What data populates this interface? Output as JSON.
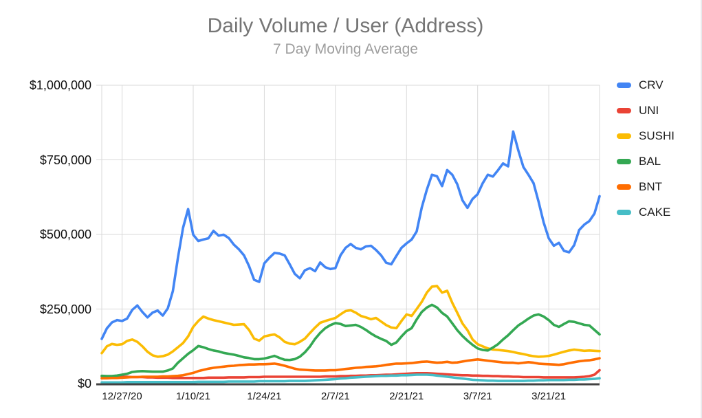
{
  "chart_data": {
    "type": "line",
    "title": "Daily Volume / User (Address)",
    "subtitle": "7 Day Moving Average",
    "x_range": {
      "start": "12/23/20",
      "end": "3/31/21",
      "points": 99
    },
    "ylim": [
      0,
      1000000
    ],
    "grid": true,
    "legend_position": "right",
    "style": {
      "grid_color": "#d9d9d9",
      "baseline_color": "#424242",
      "title_color": "#757575",
      "subtitle_color": "#9e9e9e",
      "axis_label_color": "#111111"
    },
    "y_ticks": [
      {
        "label": "$1,000,000",
        "value": 1000000
      },
      {
        "label": "$750,000",
        "value": 750000
      },
      {
        "label": "$500,000",
        "value": 500000
      },
      {
        "label": "$250,000",
        "value": 250000
      },
      {
        "label": "$0",
        "value": 0
      }
    ],
    "x_ticks": [
      {
        "label": "12/27/20",
        "index": 4
      },
      {
        "label": "1/10/21",
        "index": 18
      },
      {
        "label": "1/24/21",
        "index": 32
      },
      {
        "label": "2/7/21",
        "index": 46
      },
      {
        "label": "2/21/21",
        "index": 60
      },
      {
        "label": "3/7/21",
        "index": 74
      },
      {
        "label": "3/21/21",
        "index": 88
      }
    ],
    "series": [
      {
        "name": "CRV",
        "color": "#4285f4",
        "values": [
          150000,
          185000,
          205000,
          213000,
          210000,
          218000,
          247000,
          262000,
          240000,
          222000,
          238000,
          245000,
          228000,
          252000,
          310000,
          422000,
          522000,
          585000,
          499000,
          478000,
          483000,
          487000,
          512000,
          496000,
          499000,
          488000,
          466000,
          450000,
          430000,
          394000,
          348000,
          341000,
          403000,
          422000,
          438000,
          436000,
          430000,
          400000,
          368000,
          353000,
          380000,
          387000,
          377000,
          406000,
          390000,
          384000,
          387000,
          430000,
          455000,
          468000,
          455000,
          450000,
          460000,
          462000,
          448000,
          430000,
          405000,
          400000,
          428000,
          455000,
          470000,
          483000,
          510000,
          590000,
          650000,
          700000,
          695000,
          662000,
          716000,
          700000,
          668000,
          615000,
          589000,
          619000,
          635000,
          672000,
          700000,
          694000,
          715000,
          738000,
          728000,
          845000,
          782000,
          726000,
          700000,
          672000,
          610000,
          540000,
          487000,
          462000,
          472000,
          445000,
          440000,
          464000,
          515000,
          533000,
          545000,
          570000,
          628000
        ]
      },
      {
        "name": "UNI",
        "color": "#ea4335",
        "values": [
          25000,
          24000,
          24000,
          23000,
          23000,
          23000,
          22000,
          22000,
          22000,
          21000,
          21000,
          20000,
          20000,
          20000,
          19000,
          19000,
          19000,
          19000,
          19000,
          19000,
          19000,
          20000,
          20000,
          20000,
          20000,
          21000,
          21000,
          21000,
          21000,
          22000,
          22000,
          22000,
          23000,
          23000,
          23000,
          23000,
          23000,
          23000,
          23000,
          23000,
          23000,
          23000,
          23000,
          23000,
          24000,
          24000,
          24000,
          25000,
          25000,
          26000,
          26000,
          27000,
          27000,
          28000,
          28000,
          29000,
          30000,
          30000,
          31000,
          32000,
          33000,
          34000,
          35000,
          35000,
          35000,
          34000,
          33000,
          32000,
          31000,
          30000,
          29000,
          28000,
          28000,
          27000,
          27000,
          26000,
          26000,
          25000,
          25000,
          24000,
          24000,
          23000,
          23000,
          22000,
          22000,
          22000,
          22000,
          21000,
          21000,
          21000,
          21000,
          21000,
          21000,
          21000,
          22000,
          23000,
          25000,
          30000,
          45000
        ]
      },
      {
        "name": "SUSHI",
        "color": "#fbbc04",
        "values": [
          102000,
          125000,
          133000,
          130000,
          132000,
          143000,
          148000,
          140000,
          125000,
          107000,
          95000,
          90000,
          92000,
          97000,
          108000,
          122000,
          136000,
          158000,
          190000,
          210000,
          225000,
          218000,
          213000,
          209000,
          205000,
          201000,
          197000,
          198000,
          199000,
          180000,
          151000,
          144000,
          158000,
          162000,
          165000,
          155000,
          140000,
          134000,
          132000,
          140000,
          151000,
          170000,
          188000,
          204000,
          210000,
          215000,
          220000,
          232000,
          243000,
          246000,
          238000,
          227000,
          222000,
          216000,
          220000,
          208000,
          196000,
          188000,
          186000,
          210000,
          232000,
          227000,
          250000,
          274000,
          305000,
          325000,
          327000,
          305000,
          311000,
          271000,
          237000,
          202000,
          179000,
          148000,
          132000,
          125000,
          118000,
          114000,
          113000,
          111000,
          109000,
          106000,
          102000,
          99000,
          95000,
          92000,
          90000,
          91000,
          93000,
          97000,
          102000,
          107000,
          111000,
          114000,
          112000,
          110000,
          111000,
          110000,
          109000
        ]
      },
      {
        "name": "BAL",
        "color": "#34a853",
        "values": [
          26000,
          25000,
          25000,
          27000,
          30000,
          33000,
          39000,
          41000,
          42000,
          41000,
          40000,
          40000,
          40000,
          44000,
          51000,
          70000,
          85000,
          100000,
          112000,
          126000,
          122000,
          116000,
          111000,
          108000,
          103000,
          100000,
          97000,
          93000,
          88000,
          86000,
          82000,
          82000,
          84000,
          88000,
          93000,
          86000,
          80000,
          79000,
          82000,
          90000,
          105000,
          125000,
          150000,
          170000,
          186000,
          196000,
          203000,
          200000,
          193000,
          195000,
          197000,
          190000,
          180000,
          168000,
          158000,
          150000,
          143000,
          130000,
          138000,
          158000,
          176000,
          186000,
          215000,
          240000,
          255000,
          264000,
          255000,
          237000,
          225000,
          202000,
          179000,
          160000,
          144000,
          130000,
          118000,
          113000,
          111000,
          121000,
          132000,
          148000,
          162000,
          179000,
          195000,
          206000,
          218000,
          228000,
          232000,
          225000,
          213000,
          197000,
          190000,
          200000,
          209000,
          207000,
          202000,
          197000,
          195000,
          180000,
          165000
        ]
      },
      {
        "name": "BNT",
        "color": "#ff6d01",
        "values": [
          18000,
          18000,
          19000,
          19000,
          20000,
          21000,
          22000,
          22000,
          23000,
          23000,
          23000,
          23000,
          24000,
          24000,
          25000,
          26000,
          28000,
          32000,
          36000,
          42000,
          46000,
          50000,
          53000,
          55000,
          57000,
          59000,
          60000,
          62000,
          63000,
          64000,
          64000,
          65000,
          65000,
          66000,
          67000,
          64000,
          60000,
          55000,
          50000,
          47000,
          46000,
          45000,
          44000,
          44000,
          44000,
          45000,
          45000,
          47000,
          49000,
          51000,
          53000,
          54000,
          56000,
          57000,
          58000,
          60000,
          63000,
          65000,
          67000,
          67000,
          68000,
          69000,
          71000,
          73000,
          74000,
          72000,
          70000,
          71000,
          73000,
          70000,
          71000,
          74000,
          77000,
          79000,
          81000,
          79000,
          77000,
          75000,
          73000,
          71000,
          70000,
          70000,
          68000,
          70000,
          72000,
          70000,
          67000,
          66000,
          65000,
          64000,
          63000,
          65000,
          69000,
          72000,
          75000,
          77000,
          78000,
          81000,
          85000
        ]
      },
      {
        "name": "CAKE",
        "color": "#46bdc6",
        "values": [
          4000,
          4000,
          4000,
          4000,
          4000,
          5000,
          5000,
          5000,
          5000,
          5000,
          5000,
          5000,
          5000,
          5000,
          5000,
          5000,
          5000,
          5000,
          5000,
          6000,
          6000,
          6000,
          6000,
          6000,
          6000,
          7000,
          7000,
          7000,
          7000,
          7000,
          7000,
          8000,
          8000,
          8000,
          8000,
          8000,
          8000,
          9000,
          9000,
          9000,
          9000,
          10000,
          11000,
          12000,
          13000,
          14000,
          15000,
          17000,
          18000,
          20000,
          21000,
          22000,
          23000,
          24000,
          25000,
          26000,
          26000,
          27000,
          27000,
          28000,
          28000,
          29000,
          30000,
          30000,
          30000,
          29000,
          27000,
          25000,
          23000,
          21000,
          19000,
          17000,
          15000,
          13000,
          12000,
          11000,
          10000,
          10000,
          9000,
          9000,
          9000,
          9000,
          9000,
          9000,
          10000,
          10000,
          11000,
          11000,
          12000,
          12000,
          12000,
          12000,
          13000,
          13000,
          14000,
          14000,
          15000,
          16000,
          18000
        ]
      }
    ]
  }
}
